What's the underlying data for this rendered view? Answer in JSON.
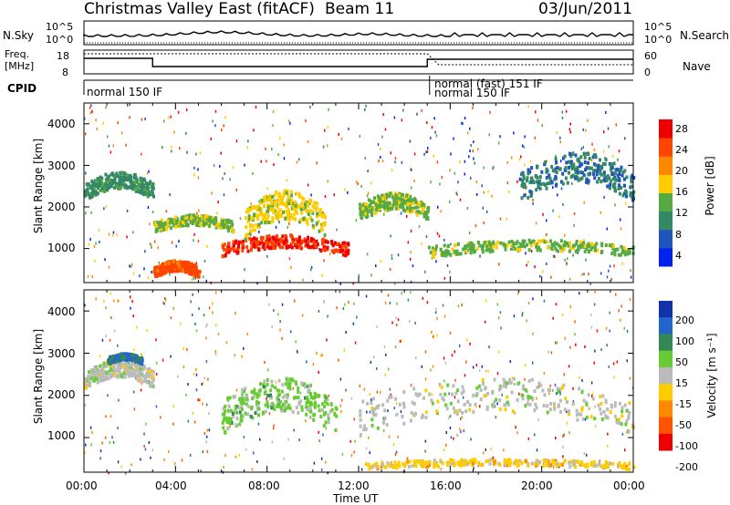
{
  "header": {
    "title": "Christmas Valley East (fitACF)",
    "beam": "Beam 11",
    "date": "03/Jun/2011"
  },
  "nsky": {
    "label": "N.Sky",
    "tick_hi": "10^5",
    "tick_lo": "10^0",
    "right_hi": "10^5",
    "right_lo": "10^0",
    "right_label": "N.Search"
  },
  "freq": {
    "label_1": "Freq.",
    "label_2": "[MHz]",
    "tick_hi": "18",
    "tick_lo": "8",
    "right_hi": "60",
    "right_lo": "0",
    "right_label": "Nave"
  },
  "cpid": {
    "label": "CPID",
    "segments": [
      "normal 150 IF",
      "normal (fast) 151 IF",
      "normal 150 IF"
    ]
  },
  "xaxis": {
    "label": "Time UT",
    "ticks": [
      "00:00",
      "04:00",
      "08:00",
      "12:00",
      "16:00",
      "20:00",
      "00:00"
    ]
  },
  "power_panel": {
    "ylabel": "Slant Range [km]",
    "yticks": [
      "1000",
      "2000",
      "3000",
      "4000"
    ],
    "colorbar_label": "Power [dB]",
    "colorbar_ticks": [
      "4",
      "8",
      "12",
      "16",
      "20",
      "24",
      "28"
    ],
    "colors": [
      "#0022ee",
      "#2255bb",
      "#338866",
      "#55aa44",
      "#ffcc00",
      "#ff8800",
      "#ff4400",
      "#ee0000"
    ]
  },
  "velocity_panel": {
    "ylabel": "Slant Range [km]",
    "yticks": [
      "1000",
      "2000",
      "3000",
      "4000"
    ],
    "colorbar_label": "Velocity [m s⁻¹]",
    "colorbar_ticks": [
      "200",
      "100",
      "50",
      "15",
      "-15",
      "-50",
      "-100",
      "-200"
    ],
    "colors": [
      "#1133aa",
      "#2266cc",
      "#338855",
      "#66cc33",
      "#bbbbbb",
      "#ffcc00",
      "#ff8800",
      "#ff5500",
      "#ee0000"
    ]
  },
  "chart_data": {
    "type": "heatmap",
    "title": "Christmas Valley East (fitACF)",
    "xlabel": "Time UT",
    "ylabel": "Slant Range [km]",
    "xlim": [
      "00:00",
      "24:00"
    ],
    "ylim": [
      180,
      4500
    ],
    "panels": [
      {
        "name": "Power [dB]",
        "zlim": [
          0,
          30
        ],
        "features": [
          {
            "t": [
              0.0,
              3.0
            ],
            "range": [
              2000,
              2800
            ],
            "value": 10
          },
          {
            "t": [
              3.0,
              6.5
            ],
            "range": [
              1300,
              1800
            ],
            "value": 14
          },
          {
            "t": [
              3.0,
              5.0
            ],
            "range": [
              200,
              700
            ],
            "value": 24
          },
          {
            "t": [
              6.0,
              11.5
            ],
            "range": [
              700,
              1300
            ],
            "value": 26
          },
          {
            "t": [
              7.0,
              10.5
            ],
            "range": [
              900,
              2300
            ],
            "value": 16
          },
          {
            "t": [
              12.0,
              15.0
            ],
            "range": [
              1500,
              2300
            ],
            "value": 14
          },
          {
            "t": [
              15.0,
              24.0
            ],
            "range": [
              700,
              1200
            ],
            "value": 14
          },
          {
            "t": [
              19.0,
              24.0
            ],
            "range": [
              1800,
              3200
            ],
            "value": 8
          }
        ]
      },
      {
        "name": "Velocity [m s-1]",
        "zlim": [
          -200,
          200
        ],
        "features": [
          {
            "t": [
              0.0,
              3.0
            ],
            "range": [
              2000,
              2800
            ],
            "value": 0
          },
          {
            "t": [
              1.0,
              2.5
            ],
            "range": [
              2700,
              3000
            ],
            "value": 120
          },
          {
            "t": [
              6.0,
              11.0
            ],
            "range": [
              700,
              2300
            ],
            "value": 40
          },
          {
            "t": [
              12.0,
              24.0
            ],
            "range": [
              700,
              2300
            ],
            "value": 0
          },
          {
            "t": [
              12.0,
              24.0
            ],
            "range": [
              200,
              500
            ],
            "value": -40
          }
        ]
      }
    ]
  }
}
